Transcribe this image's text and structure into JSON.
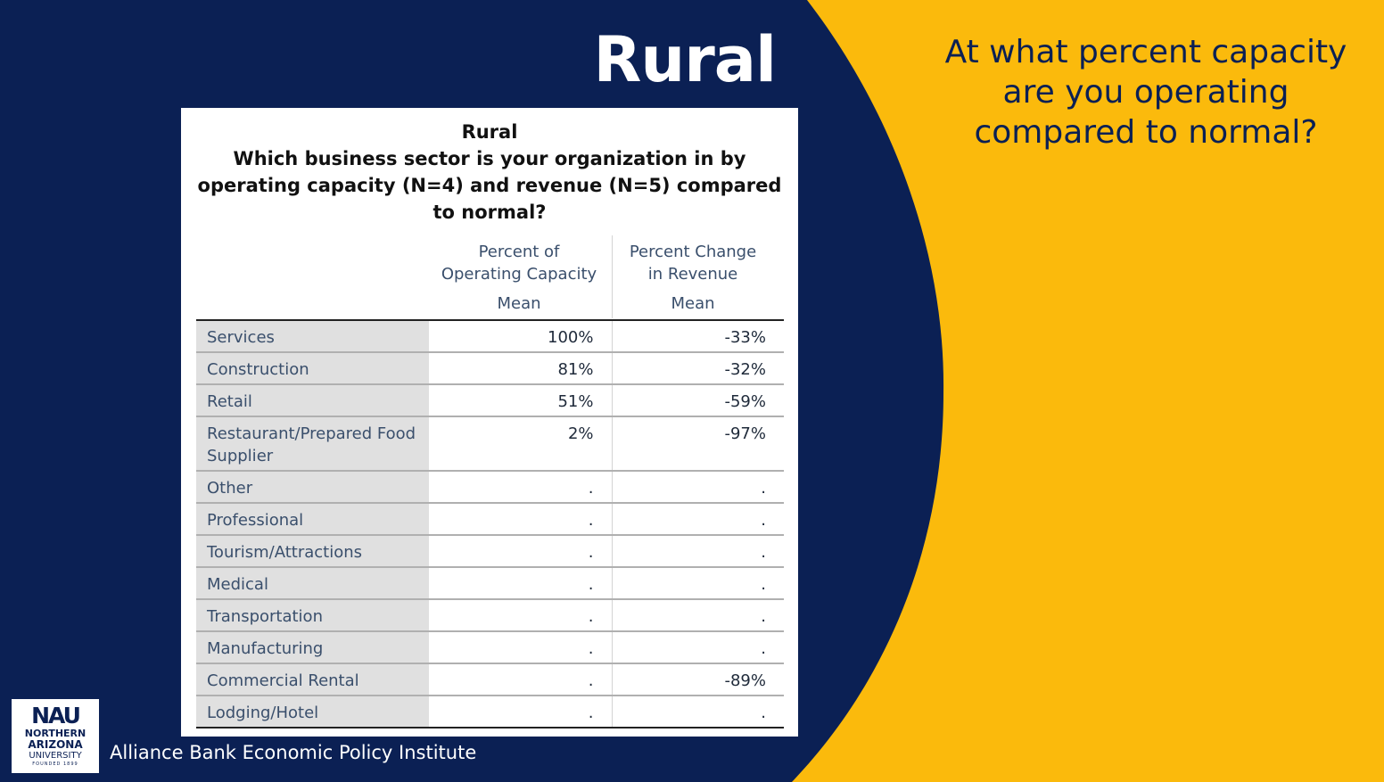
{
  "slide": {
    "title": "Rural",
    "question": "At what percent capacity are you operating compared to normal?"
  },
  "table": {
    "title_lines": [
      "Rural",
      "Which business sector is your organization in by",
      "operating capacity (N=4) and revenue (N=5) compared",
      "to normal?"
    ],
    "columns": [
      {
        "header_lines": [
          "Percent of",
          "Operating Capacity"
        ],
        "sub": "Mean"
      },
      {
        "header_lines": [
          "Percent Change",
          "in Revenue"
        ],
        "sub": "Mean"
      }
    ],
    "rows": [
      {
        "label": "Services",
        "capacity": "100%",
        "revenue": "-33%"
      },
      {
        "label": "Construction",
        "capacity": "81%",
        "revenue": "-32%"
      },
      {
        "label": "Retail",
        "capacity": "51%",
        "revenue": "-59%"
      },
      {
        "label": "Restaurant/Prepared Food Supplier",
        "capacity": "2%",
        "revenue": "-97%"
      },
      {
        "label": "Other",
        "capacity": ".",
        "revenue": "."
      },
      {
        "label": "Professional",
        "capacity": ".",
        "revenue": "."
      },
      {
        "label": "Tourism/Attractions",
        "capacity": ".",
        "revenue": "."
      },
      {
        "label": "Medical",
        "capacity": ".",
        "revenue": "."
      },
      {
        "label": "Transportation",
        "capacity": ".",
        "revenue": "."
      },
      {
        "label": "Manufacturing",
        "capacity": ".",
        "revenue": "."
      },
      {
        "label": "Commercial Rental",
        "capacity": ".",
        "revenue": "-89%"
      },
      {
        "label": "Lodging/Hotel",
        "capacity": ".",
        "revenue": "."
      }
    ]
  },
  "logo": {
    "mark": "NAU",
    "line1": "NORTHERN",
    "line2": "ARIZONA",
    "line3": "UNIVERSITY",
    "line4": "FOUNDED 1899"
  },
  "footer": "Alliance Bank Economic Policy Institute",
  "colors": {
    "navy": "#0B2054",
    "gold": "#FBBA0C",
    "white": "#FFFFFF"
  },
  "icons": [
    "nau-logo-icon"
  ]
}
